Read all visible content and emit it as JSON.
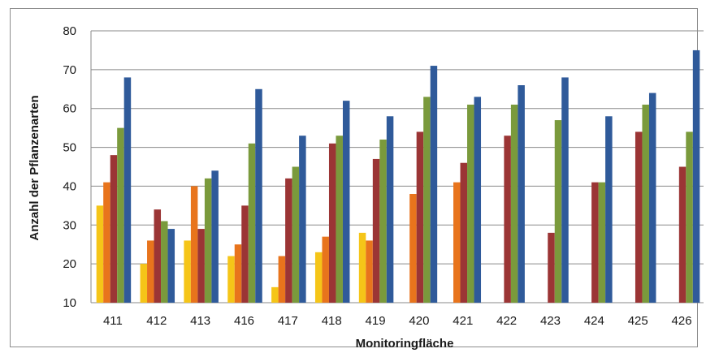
{
  "chart_data": {
    "type": "bar",
    "xlabel": "Monitoringfläche",
    "ylabel": "Anzahl der Pflanzenarten",
    "ylim": [
      10,
      80
    ],
    "yticks": [
      10,
      20,
      30,
      40,
      50,
      60,
      70,
      80
    ],
    "grid": true,
    "legend": "none",
    "categories": [
      "411",
      "412",
      "413",
      "416",
      "417",
      "418",
      "419",
      "420",
      "421",
      "422",
      "423",
      "424",
      "425",
      "426"
    ],
    "series": [
      {
        "color": "#f5c518",
        "values": [
          35,
          20,
          26,
          22,
          14,
          23,
          28,
          null,
          null,
          null,
          null,
          null,
          null,
          null
        ]
      },
      {
        "color": "#e8741c",
        "values": [
          41,
          26,
          40,
          25,
          22,
          27,
          26,
          38,
          41,
          null,
          null,
          null,
          null,
          null
        ]
      },
      {
        "color": "#9b3535",
        "values": [
          48,
          34,
          29,
          35,
          42,
          51,
          47,
          54,
          46,
          53,
          28,
          41,
          54,
          45
        ]
      },
      {
        "color": "#7a9a3c",
        "values": [
          55,
          31,
          42,
          51,
          45,
          53,
          52,
          63,
          61,
          61,
          57,
          41,
          61,
          54
        ]
      },
      {
        "color": "#2f5a9a",
        "values": [
          68,
          29,
          44,
          65,
          53,
          62,
          58,
          71,
          63,
          66,
          68,
          58,
          64,
          75
        ]
      }
    ]
  }
}
